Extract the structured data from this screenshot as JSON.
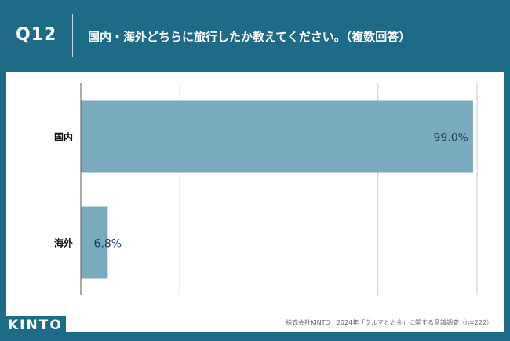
{
  "header": {
    "question_number": "Q12",
    "question_text": "国内・海外どちらに旅行したか教えてください。（複数回答）"
  },
  "colors": {
    "background": "#1d6b87",
    "bar": "#79aabe",
    "grid": "#c8c8c8",
    "label": "#1f3b5c"
  },
  "chart_data": {
    "type": "bar",
    "orientation": "horizontal",
    "categories": [
      "国内",
      "海外"
    ],
    "values": [
      99.0,
      6.8
    ],
    "value_labels": [
      "99.0%",
      "6.8%"
    ],
    "xlim": [
      0,
      100
    ],
    "grid": true,
    "title": "",
    "xlabel": "",
    "ylabel": ""
  },
  "footer": {
    "source": "株式会社KINTO　2024年「クルマとお金」に関する意識調査（n=222）",
    "logo": "KINTO"
  }
}
